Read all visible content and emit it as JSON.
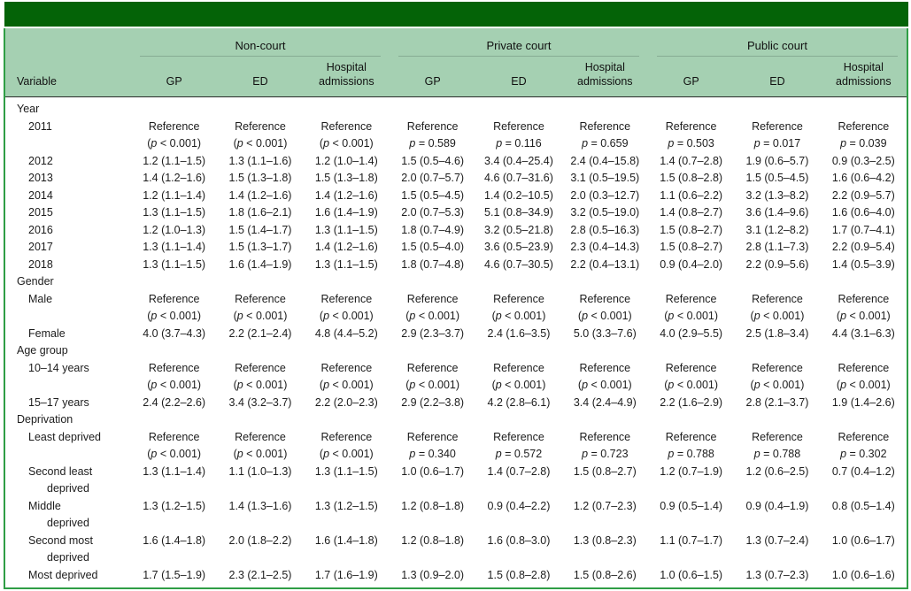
{
  "colors": {
    "title_bar": "#046307",
    "header_bg": "#a5d0b2",
    "frame_border": "#2f9e45",
    "group_underline": "#86ac93",
    "header_rule": "#2b2b2b"
  },
  "table": {
    "variable_header": "Variable",
    "column_groups": [
      "Non-court",
      "Private court",
      "Public court"
    ],
    "sub_headers": [
      "GP",
      "ED",
      "Hospital admissions",
      "GP",
      "ED",
      "Hospital admissions",
      "GP",
      "ED",
      "Hospital admissions"
    ],
    "sections": [
      {
        "label": "Year",
        "rows": [
          {
            "label": "2011",
            "cells": [
              [
                "Reference",
                "(p < 0.001)"
              ],
              [
                "Reference",
                "(p < 0.001)"
              ],
              [
                "Reference",
                "(p < 0.001)"
              ],
              [
                "Reference",
                "p = 0.589"
              ],
              [
                "Reference",
                "p = 0.116"
              ],
              [
                "Reference",
                "p = 0.659"
              ],
              [
                "Reference",
                "p = 0.503"
              ],
              [
                "Reference",
                "p = 0.017"
              ],
              [
                "Reference",
                "p = 0.039"
              ]
            ]
          },
          {
            "label": "2012",
            "cells": [
              [
                "1.2 (1.1–1.5)"
              ],
              [
                "1.3 (1.1–1.6)"
              ],
              [
                "1.2 (1.0–1.4)"
              ],
              [
                "1.5 (0.5–4.6)"
              ],
              [
                "3.4 (0.4–25.4)"
              ],
              [
                "2.4 (0.4–15.8)"
              ],
              [
                "1.4 (0.7–2.8)"
              ],
              [
                "1.9 (0.6–5.7)"
              ],
              [
                "0.9 (0.3–2.5)"
              ]
            ]
          },
          {
            "label": "2013",
            "cells": [
              [
                "1.4 (1.2–1.6)"
              ],
              [
                "1.5 (1.3–1.8)"
              ],
              [
                "1.5 (1.3–1.8)"
              ],
              [
                "2.0 (0.7–5.7)"
              ],
              [
                "4.6 (0.7–31.6)"
              ],
              [
                "3.1 (0.5–19.5)"
              ],
              [
                "1.5 (0.8–2.8)"
              ],
              [
                "1.5 (0.5–4.5)"
              ],
              [
                "1.6 (0.6–4.2)"
              ]
            ]
          },
          {
            "label": "2014",
            "cells": [
              [
                "1.2 (1.1–1.4)"
              ],
              [
                "1.4 (1.2–1.6)"
              ],
              [
                "1.4 (1.2–1.6)"
              ],
              [
                "1.5 (0.5–4.5)"
              ],
              [
                "1.4 (0.2–10.5)"
              ],
              [
                "2.0 (0.3–12.7)"
              ],
              [
                "1.1 (0.6–2.2)"
              ],
              [
                "3.2 (1.3–8.2)"
              ],
              [
                "2.2 (0.9–5.7)"
              ]
            ]
          },
          {
            "label": "2015",
            "cells": [
              [
                "1.3 (1.1–1.5)"
              ],
              [
                "1.8 (1.6–2.1)"
              ],
              [
                "1.6 (1.4–1.9)"
              ],
              [
                "2.0 (0.7–5.3)"
              ],
              [
                "5.1 (0.8–34.9)"
              ],
              [
                "3.2 (0.5–19.0)"
              ],
              [
                "1.4 (0.8–2.7)"
              ],
              [
                "3.6 (1.4–9.6)"
              ],
              [
                "1.6 (0.6–4.0)"
              ]
            ]
          },
          {
            "label": "2016",
            "cells": [
              [
                "1.2 (1.0–1.3)"
              ],
              [
                "1.5 (1.4–1.7)"
              ],
              [
                "1.3 (1.1–1.5)"
              ],
              [
                "1.8 (0.7–4.9)"
              ],
              [
                "3.2 (0.5–21.8)"
              ],
              [
                "2.8 (0.5–16.3)"
              ],
              [
                "1.5 (0.8–2.7)"
              ],
              [
                "3.1 (1.2–8.2)"
              ],
              [
                "1.7 (0.7–4.1)"
              ]
            ]
          },
          {
            "label": "2017",
            "cells": [
              [
                "1.3 (1.1–1.4)"
              ],
              [
                "1.5 (1.3–1.7)"
              ],
              [
                "1.4 (1.2–1.6)"
              ],
              [
                "1.5 (0.5–4.0)"
              ],
              [
                "3.6 (0.5–23.9)"
              ],
              [
                "2.3 (0.4–14.3)"
              ],
              [
                "1.5 (0.8–2.7)"
              ],
              [
                "2.8 (1.1–7.3)"
              ],
              [
                "2.2 (0.9–5.4)"
              ]
            ]
          },
          {
            "label": "2018",
            "cells": [
              [
                "1.3 (1.1–1.5)"
              ],
              [
                "1.6 (1.4–1.9)"
              ],
              [
                "1.3 (1.1–1.5)"
              ],
              [
                "1.8 (0.7–4.8)"
              ],
              [
                "4.6 (0.7–30.5)"
              ],
              [
                "2.2 (0.4–13.1)"
              ],
              [
                "0.9 (0.4–2.0)"
              ],
              [
                "2.2 (0.9–5.6)"
              ],
              [
                "1.4 (0.5–3.9)"
              ]
            ]
          }
        ]
      },
      {
        "label": "Gender",
        "rows": [
          {
            "label": "Male",
            "cells": [
              [
                "Reference",
                "(p < 0.001)"
              ],
              [
                "Reference",
                "(p < 0.001)"
              ],
              [
                "Reference",
                "(p < 0.001)"
              ],
              [
                "Reference",
                "(p < 0.001)"
              ],
              [
                "Reference",
                "(p < 0.001)"
              ],
              [
                "Reference",
                "(p < 0.001)"
              ],
              [
                "Reference",
                "(p < 0.001)"
              ],
              [
                "Reference",
                "(p < 0.001)"
              ],
              [
                "Reference",
                "(p < 0.001)"
              ]
            ]
          },
          {
            "label": "Female",
            "cells": [
              [
                "4.0 (3.7–4.3)"
              ],
              [
                "2.2 (2.1–2.4)"
              ],
              [
                "4.8 (4.4–5.2)"
              ],
              [
                "2.9 (2.3–3.7)"
              ],
              [
                "2.4 (1.6–3.5)"
              ],
              [
                "5.0 (3.3–7.6)"
              ],
              [
                "4.0 (2.9–5.5)"
              ],
              [
                "2.5 (1.8–3.4)"
              ],
              [
                "4.4 (3.1–6.3)"
              ]
            ]
          }
        ]
      },
      {
        "label": "Age group",
        "rows": [
          {
            "label": "10–14 years",
            "cells": [
              [
                "Reference",
                "(p < 0.001)"
              ],
              [
                "Reference",
                "(p < 0.001)"
              ],
              [
                "Reference",
                "(p < 0.001)"
              ],
              [
                "Reference",
                "(p < 0.001)"
              ],
              [
                "Reference",
                "(p < 0.001)"
              ],
              [
                "Reference",
                "(p < 0.001)"
              ],
              [
                "Reference",
                "(p < 0.001)"
              ],
              [
                "Reference",
                "(p < 0.001)"
              ],
              [
                "Reference",
                "(p < 0.001)"
              ]
            ]
          },
          {
            "label": "15–17 years",
            "cells": [
              [
                "2.4 (2.2–2.6)"
              ],
              [
                "3.4 (3.2–3.7)"
              ],
              [
                "2.2 (2.0–2.3)"
              ],
              [
                "2.9 (2.2–3.8)"
              ],
              [
                "4.2 (2.8–6.1)"
              ],
              [
                "3.4 (2.4–4.9)"
              ],
              [
                "2.2 (1.6–2.9)"
              ],
              [
                "2.8 (2.1–3.7)"
              ],
              [
                "1.9 (1.4–2.6)"
              ]
            ]
          }
        ]
      },
      {
        "label": "Deprivation",
        "rows": [
          {
            "label": "Least deprived",
            "cells": [
              [
                "Reference",
                "(p < 0.001)"
              ],
              [
                "Reference",
                "(p < 0.001)"
              ],
              [
                "Reference",
                "(p < 0.001)"
              ],
              [
                "Reference",
                "p = 0.340"
              ],
              [
                "Reference",
                "p = 0.572"
              ],
              [
                "Reference",
                "p = 0.723"
              ],
              [
                "Reference",
                "p = 0.788"
              ],
              [
                "Reference",
                "p = 0.788"
              ],
              [
                "Reference",
                "p = 0.302"
              ]
            ]
          },
          {
            "label": "Second least\ndeprived",
            "cells": [
              [
                "1.3 (1.1–1.4)"
              ],
              [
                "1.1 (1.0–1.3)"
              ],
              [
                "1.3 (1.1–1.5)"
              ],
              [
                "1.0 (0.6–1.7)"
              ],
              [
                "1.4 (0.7–2.8)"
              ],
              [
                "1.5 (0.8–2.7)"
              ],
              [
                "1.2 (0.7–1.9)"
              ],
              [
                "1.2 (0.6–2.5)"
              ],
              [
                "0.7 (0.4–1.2)"
              ]
            ]
          },
          {
            "label": "Middle\ndeprived",
            "cells": [
              [
                "1.3 (1.2–1.5)"
              ],
              [
                "1.4 (1.3–1.6)"
              ],
              [
                "1.3 (1.2–1.5)"
              ],
              [
                "1.2 (0.8–1.8)"
              ],
              [
                "0.9 (0.4–2.2)"
              ],
              [
                "1.2 (0.7–2.3)"
              ],
              [
                "0.9 (0.5–1.4)"
              ],
              [
                "0.9 (0.4–1.9)"
              ],
              [
                "0.8 (0.5–1.4)"
              ]
            ]
          },
          {
            "label": "Second most\ndeprived",
            "cells": [
              [
                "1.6 (1.4–1.8)"
              ],
              [
                "2.0 (1.8–2.2)"
              ],
              [
                "1.6 (1.4–1.8)"
              ],
              [
                "1.2 (0.8–1.8)"
              ],
              [
                "1.6 (0.8–3.0)"
              ],
              [
                "1.3 (0.8–2.3)"
              ],
              [
                "1.1 (0.7–1.7)"
              ],
              [
                "1.3 (0.7–2.4)"
              ],
              [
                "1.0 (0.6–1.7)"
              ]
            ]
          },
          {
            "label": "Most deprived",
            "cells": [
              [
                "1.7 (1.5–1.9)"
              ],
              [
                "2.3 (2.1–2.5)"
              ],
              [
                "1.7 (1.6–1.9)"
              ],
              [
                "1.3 (0.9–2.0)"
              ],
              [
                "1.5 (0.8–2.8)"
              ],
              [
                "1.5 (0.8–2.6)"
              ],
              [
                "1.0 (0.6–1.5)"
              ],
              [
                "1.3 (0.7–2.3)"
              ],
              [
                "1.0 (0.6–1.6)"
              ]
            ]
          }
        ]
      }
    ]
  }
}
